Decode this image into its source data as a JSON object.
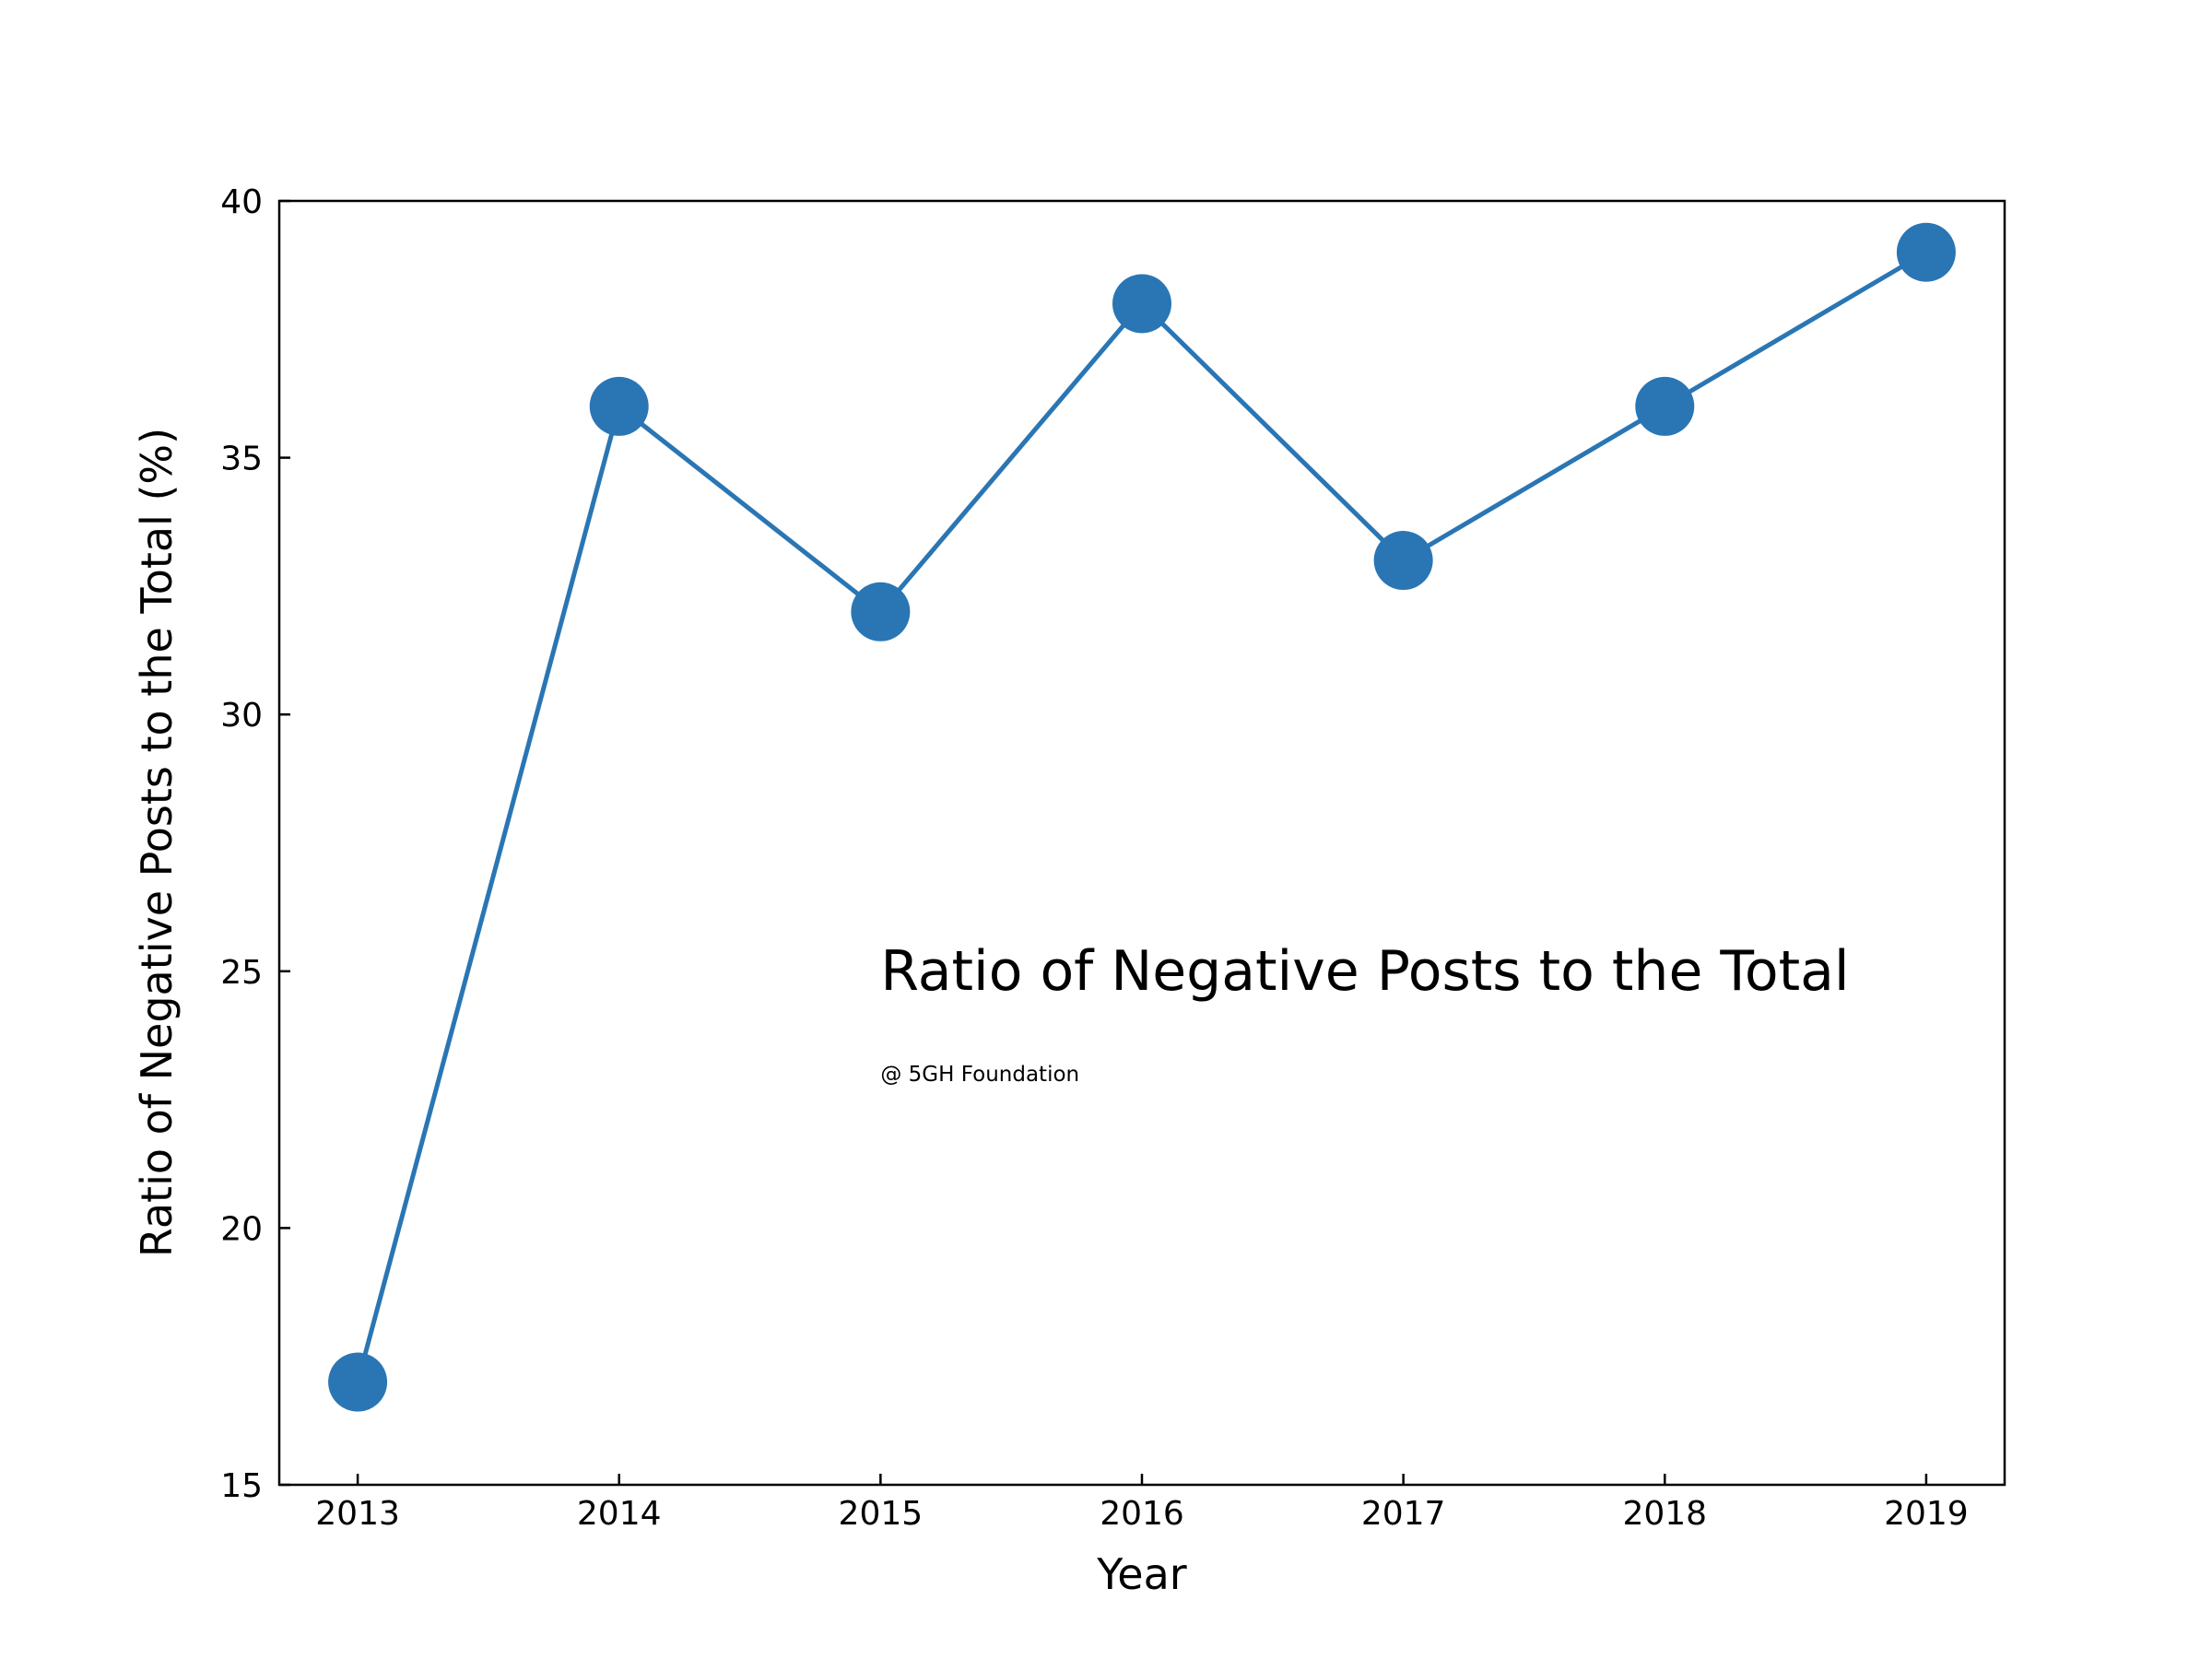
{
  "chart_data": {
    "type": "line",
    "xlabel": "Year",
    "ylabel": "Ratio of Negative Posts to the Total (%)",
    "x": [
      2013,
      2014,
      2015,
      2016,
      2017,
      2018,
      2019
    ],
    "series": [
      {
        "values": [
          17,
          36,
          32,
          38,
          33,
          36,
          39
        ]
      }
    ],
    "xlim": [
      2012.7,
      2019.3
    ],
    "ylim": [
      15,
      40
    ],
    "xticks": [
      "2013",
      "2014",
      "2015",
      "2016",
      "2017",
      "2018",
      "2019"
    ],
    "yticks": [
      "15",
      "20",
      "25",
      "30",
      "35",
      "40"
    ],
    "grid": false,
    "color": "#2a76b4",
    "annotations": [
      {
        "text": "Ratio of Negative Posts to the Total",
        "x": 2015.0,
        "y": 25.0
      },
      {
        "text": "@ 5GH Foundation",
        "x": 2015.0,
        "y": 23.0
      }
    ]
  }
}
